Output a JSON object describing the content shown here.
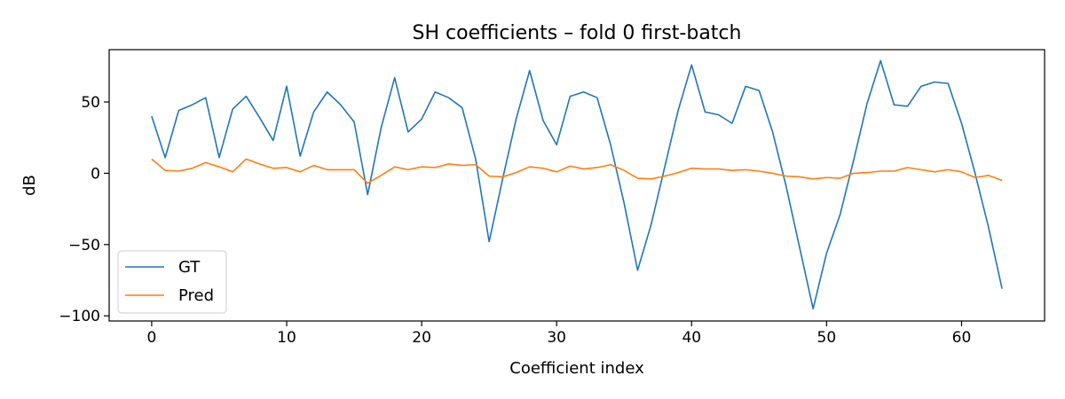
{
  "chart_data": {
    "type": "line",
    "title": "SH coefficients – fold 0 first-batch",
    "xlabel": "Coefficient index",
    "ylabel": "dB",
    "xlim": [
      -3.15,
      66.15
    ],
    "ylim": [
      -103.6,
      86.7
    ],
    "xticks": [
      0,
      10,
      20,
      30,
      40,
      50,
      60
    ],
    "xtick_labels": [
      "0",
      "10",
      "20",
      "30",
      "40",
      "50",
      "60"
    ],
    "yticks": [
      -100,
      -50,
      0,
      50
    ],
    "ytick_labels": [
      "−100",
      "−50",
      "0",
      "50"
    ],
    "grid": false,
    "legend_position": "lower-left",
    "x": [
      0,
      1,
      2,
      3,
      4,
      5,
      6,
      7,
      8,
      9,
      10,
      11,
      12,
      13,
      14,
      15,
      16,
      17,
      18,
      19,
      20,
      21,
      22,
      23,
      24,
      25,
      26,
      27,
      28,
      29,
      30,
      31,
      32,
      33,
      34,
      35,
      36,
      37,
      38,
      39,
      40,
      41,
      42,
      43,
      44,
      45,
      46,
      47,
      48,
      49,
      50,
      51,
      52,
      53,
      54,
      55,
      56,
      57,
      58,
      59,
      60,
      61,
      62,
      63
    ],
    "series": [
      {
        "name": "GT",
        "color": "#1f77b4",
        "values": [
          40,
          11,
          44,
          48,
          53,
          11,
          45,
          54,
          39,
          23,
          61,
          12,
          43,
          57,
          48,
          36,
          -15,
          32,
          67,
          29,
          38,
          57,
          53,
          46,
          10,
          -48,
          -4,
          38,
          72,
          37,
          20,
          54,
          57,
          53,
          20,
          -21,
          -68,
          -36,
          4,
          44,
          76,
          43,
          41,
          35,
          61,
          58,
          29,
          -9,
          -52,
          -95,
          -56,
          -29,
          9,
          49,
          79,
          48,
          47,
          61,
          64,
          63,
          35,
          0,
          -38,
          -81
        ]
      },
      {
        "name": "Pred",
        "color": "#ff7f0e",
        "values": [
          10,
          2,
          1.5,
          3.5,
          7.5,
          4.5,
          1,
          10,
          6.5,
          3.5,
          4,
          1,
          5.5,
          2.5,
          2.5,
          2.5,
          -7,
          -1.5,
          4.5,
          2.5,
          4.5,
          4,
          6.5,
          5.5,
          6,
          -2,
          -2.5,
          0.5,
          4.5,
          3.5,
          1,
          5,
          3,
          4,
          6,
          2,
          -3.5,
          -4,
          -2,
          0.5,
          3.5,
          3,
          3,
          2,
          2.5,
          1.5,
          0,
          -2,
          -2.5,
          -4,
          -3,
          -3.5,
          0,
          0.5,
          1.5,
          1.5,
          4,
          2.5,
          1,
          2.5,
          1,
          -3,
          -1.5,
          -5
        ]
      }
    ]
  }
}
